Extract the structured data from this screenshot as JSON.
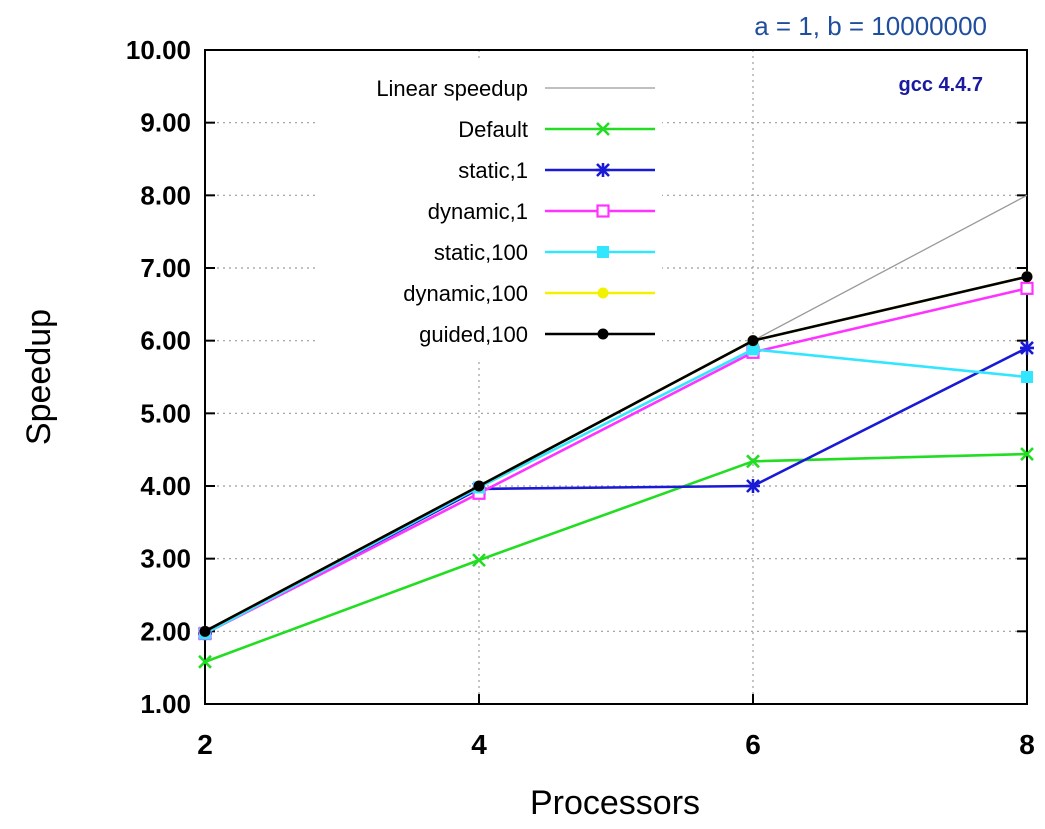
{
  "chart_data": {
    "type": "line",
    "subtitle": "a = 1, b = 10000000",
    "annotation": "gcc 4.4.7",
    "xlabel": "Processors",
    "ylabel": "Speedup",
    "x": [
      2,
      4,
      6,
      8
    ],
    "x_ticks": [
      "2",
      "4",
      "6",
      "8"
    ],
    "y_ticks": [
      "1.00",
      "2.00",
      "3.00",
      "4.00",
      "5.00",
      "6.00",
      "7.00",
      "8.00",
      "9.00",
      "10.00"
    ],
    "xlim": [
      2,
      8
    ],
    "ylim": [
      1,
      10
    ],
    "grid": true,
    "legend_position": "top-left",
    "series": [
      {
        "name": "Linear speedup",
        "values": [
          2,
          4,
          6,
          8
        ],
        "color": "#9a9a9a",
        "marker": "none"
      },
      {
        "name": "Default",
        "values": [
          1.58,
          2.98,
          4.34,
          4.44
        ],
        "color": "#22dd22",
        "marker": "x"
      },
      {
        "name": "static,1",
        "values": [
          1.97,
          3.96,
          4.0,
          5.9
        ],
        "color": "#1a1ad6",
        "marker": "star"
      },
      {
        "name": "dynamic,1",
        "values": [
          1.97,
          3.9,
          5.84,
          6.72
        ],
        "color": "#ff33ff",
        "marker": "open-square"
      },
      {
        "name": "static,100",
        "values": [
          1.97,
          3.98,
          5.88,
          5.5
        ],
        "color": "#33e6ff",
        "marker": "filled-square"
      },
      {
        "name": "dynamic,100",
        "values": [
          2.0,
          4.0,
          6.0,
          6.88
        ],
        "color": "#f2f200",
        "marker": "filled-circle"
      },
      {
        "name": "guided,100",
        "values": [
          2.0,
          4.0,
          6.0,
          6.88
        ],
        "color": "#000000",
        "marker": "filled-circle"
      }
    ]
  }
}
